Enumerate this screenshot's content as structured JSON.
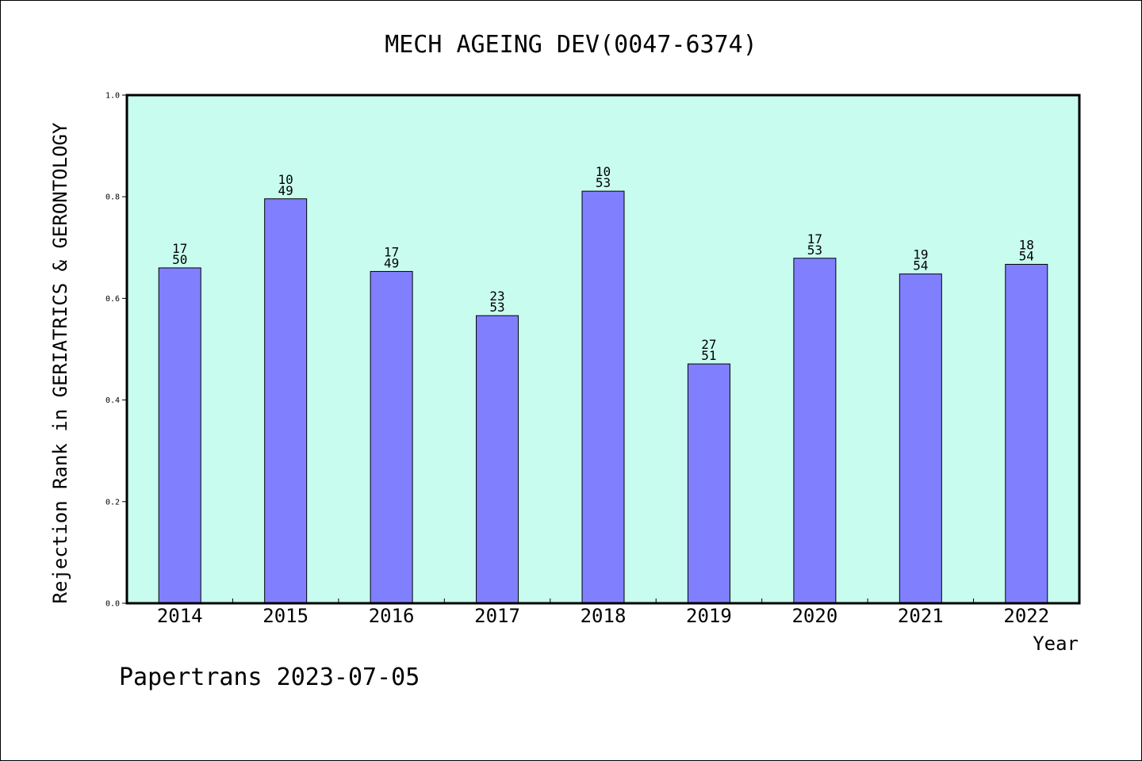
{
  "chart_data": {
    "type": "bar",
    "title": "MECH AGEING DEV(0047-6374)",
    "xlabel": "Year",
    "ylabel": "Rejection Rank in GERIATRICS & GERONTOLOGY",
    "ylim": [
      0,
      1.0
    ],
    "yticks": [
      "0.0",
      "0.2",
      "0.4",
      "0.6",
      "0.8",
      "1.0"
    ],
    "categories": [
      "2014",
      "2015",
      "2016",
      "2017",
      "2018",
      "2019",
      "2020",
      "2021",
      "2022"
    ],
    "values": [
      0.66,
      0.796,
      0.653,
      0.566,
      0.811,
      0.471,
      0.679,
      0.648,
      0.667
    ],
    "bar_labels": [
      [
        "17",
        "50"
      ],
      [
        "10",
        "49"
      ],
      [
        "17",
        "49"
      ],
      [
        "23",
        "53"
      ],
      [
        "10",
        "53"
      ],
      [
        "27",
        "51"
      ],
      [
        "17",
        "53"
      ],
      [
        "19",
        "54"
      ],
      [
        "18",
        "54"
      ]
    ],
    "grid": false,
    "colors": {
      "plot_background": "#c8fcee",
      "bar_fill": "#8080ff",
      "bar_edge": "#000000"
    }
  },
  "footer": {
    "text": "Papertrans 2023-07-05"
  }
}
